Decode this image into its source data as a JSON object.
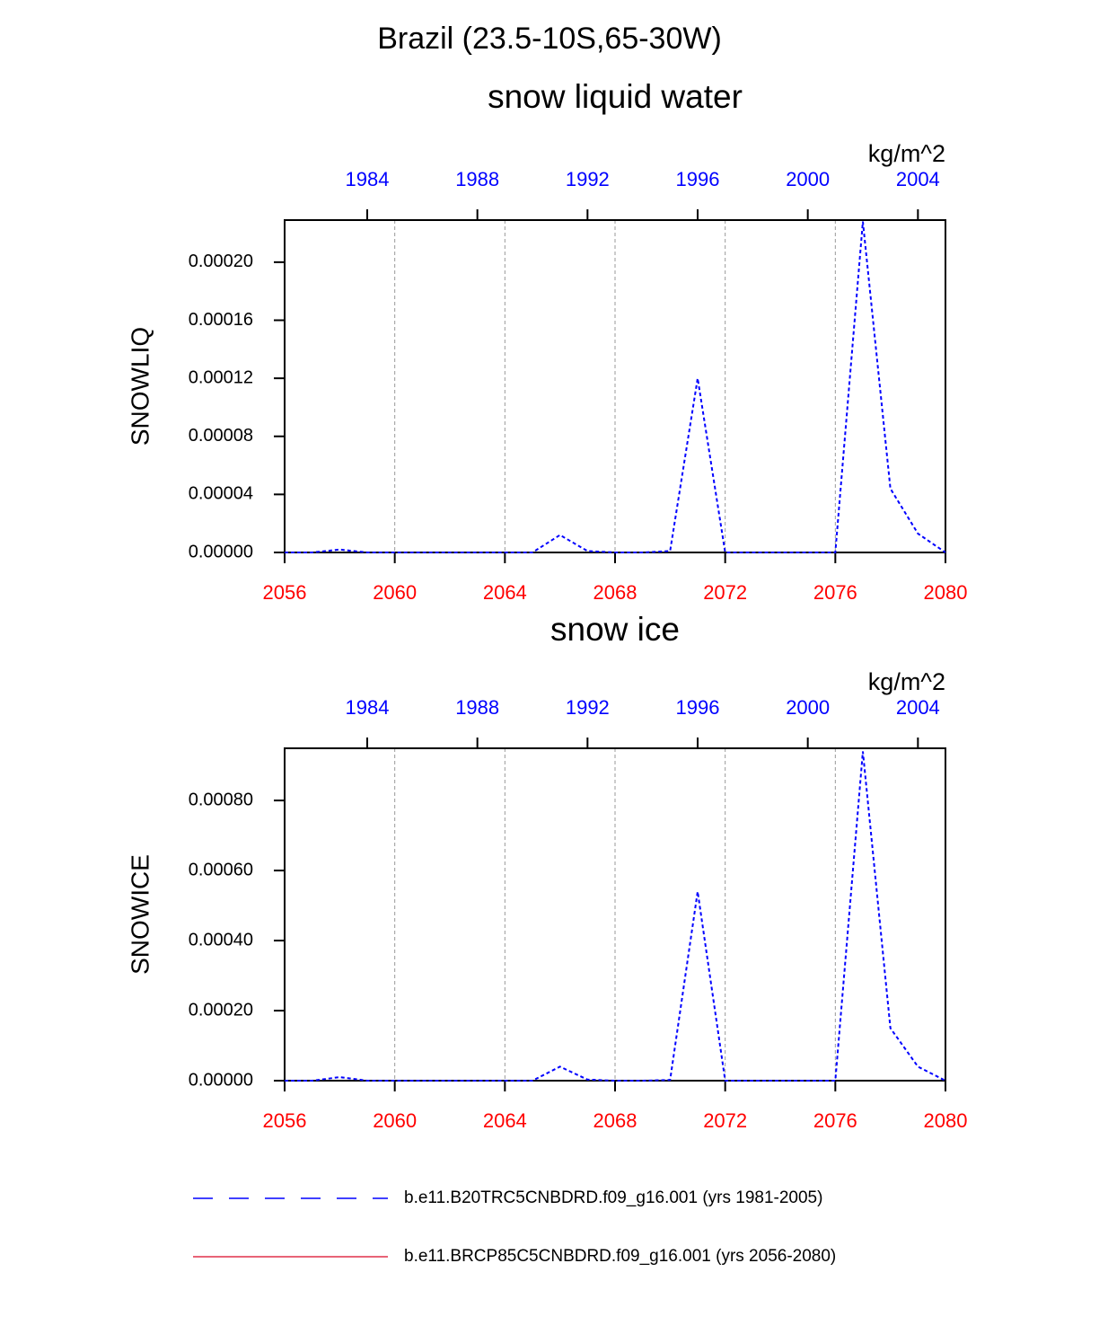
{
  "title": "Brazil (23.5-10S,65-30W)",
  "chart_data": [
    {
      "type": "line",
      "title": "snow liquid water",
      "units": "kg/m^2",
      "ylabel": "SNOWLIQ",
      "x": [
        2056,
        2057,
        2058,
        2059,
        2060,
        2061,
        2062,
        2063,
        2064,
        2065,
        2066,
        2067,
        2068,
        2069,
        2070,
        2071,
        2072,
        2073,
        2074,
        2075,
        2076,
        2077,
        2078,
        2079,
        2080
      ],
      "xlim": [
        2056,
        2080
      ],
      "xticks": [
        2056,
        2060,
        2064,
        2068,
        2072,
        2076,
        2080
      ],
      "x2lim": [
        1981,
        2005
      ],
      "x2ticks": [
        1984,
        1988,
        1992,
        1996,
        2000,
        2004
      ],
      "ylim": [
        0,
        0.000229
      ],
      "yticks": [
        {
          "value": 0,
          "label": "0.00000"
        },
        {
          "value": 4e-05,
          "label": "0.00004"
        },
        {
          "value": 8e-05,
          "label": "0.00008"
        },
        {
          "value": 0.00012,
          "label": "0.00012"
        },
        {
          "value": 0.00016,
          "label": "0.00016"
        },
        {
          "value": 0.0002,
          "label": "0.00020"
        }
      ],
      "grid": true,
      "series": [
        {
          "name": "b.e11.B20TRC5CNBDRD.f09_g16.001 (yrs 1981-2005)",
          "color": "#0000ff",
          "style": "dashed",
          "values": [
            0,
            0,
            2e-06,
            0,
            0,
            0,
            0,
            0,
            0,
            0,
            1.2e-05,
            1e-06,
            0,
            0,
            1e-06,
            0.00012,
            0,
            0,
            0,
            0,
            0,
            0.000228,
            4.4e-05,
            1.3e-05,
            0
          ]
        },
        {
          "name": "b.e11.BRCP85C5CNBDRD.f09_g16.001 (yrs 2056-2080)",
          "color": "#e0304a",
          "style": "solid",
          "values": [
            null,
            null,
            null,
            null,
            null,
            null,
            null,
            null,
            null,
            null,
            null,
            null,
            null,
            null,
            null,
            null,
            null,
            null,
            null,
            null,
            null,
            null,
            null,
            null,
            null
          ]
        }
      ]
    },
    {
      "type": "line",
      "title": "snow ice",
      "units": "kg/m^2",
      "ylabel": "SNOWICE",
      "x": [
        2056,
        2057,
        2058,
        2059,
        2060,
        2061,
        2062,
        2063,
        2064,
        2065,
        2066,
        2067,
        2068,
        2069,
        2070,
        2071,
        2072,
        2073,
        2074,
        2075,
        2076,
        2077,
        2078,
        2079,
        2080
      ],
      "xlim": [
        2056,
        2080
      ],
      "xticks": [
        2056,
        2060,
        2064,
        2068,
        2072,
        2076,
        2080
      ],
      "x2lim": [
        1981,
        2005
      ],
      "x2ticks": [
        1984,
        1988,
        1992,
        1996,
        2000,
        2004
      ],
      "ylim": [
        0,
        0.000949
      ],
      "yticks": [
        {
          "value": 0,
          "label": "0.00000"
        },
        {
          "value": 0.0002,
          "label": "0.00020"
        },
        {
          "value": 0.0004,
          "label": "0.00040"
        },
        {
          "value": 0.0006,
          "label": "0.00060"
        },
        {
          "value": 0.0008,
          "label": "0.00080"
        }
      ],
      "grid": true,
      "series": [
        {
          "name": "b.e11.B20TRC5CNBDRD.f09_g16.001 (yrs 1981-2005)",
          "color": "#0000ff",
          "style": "dashed",
          "values": [
            0,
            0,
            1e-05,
            0,
            0,
            0,
            0,
            0,
            0,
            0,
            4e-05,
            3e-06,
            0,
            0,
            2e-06,
            0.00054,
            0,
            0,
            0,
            0,
            0,
            0.00094,
            0.00015,
            4e-05,
            0
          ]
        },
        {
          "name": "b.e11.BRCP85C5CNBDRD.f09_g16.001 (yrs 2056-2080)",
          "color": "#e0304a",
          "style": "solid",
          "values": [
            null,
            null,
            null,
            null,
            null,
            null,
            null,
            null,
            null,
            null,
            null,
            null,
            null,
            null,
            null,
            null,
            null,
            null,
            null,
            null,
            null,
            null,
            null,
            null,
            null
          ]
        }
      ]
    }
  ]
}
